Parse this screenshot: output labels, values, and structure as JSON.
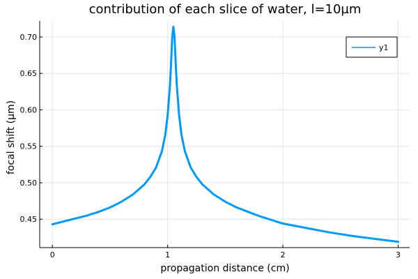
{
  "chart_data": {
    "type": "line",
    "title": "contribution of each slice of water, l=10µm",
    "xlabel": "propagation distance (cm)",
    "ylabel": "focal shift (µm)",
    "xlim": [
      -0.11,
      3.1
    ],
    "ylim": [
      0.411,
      0.722
    ],
    "xticks": [
      0,
      1,
      2,
      3
    ],
    "xtick_labels": [
      "0",
      "1",
      "2",
      "3"
    ],
    "yticks": [
      0.45,
      0.5,
      0.55,
      0.6,
      0.65,
      0.7
    ],
    "ytick_labels": [
      "0.45",
      "0.50",
      "0.55",
      "0.60",
      "0.65",
      "0.70"
    ],
    "grid": true,
    "legend": {
      "position": "top-right",
      "entries": [
        "y1"
      ]
    },
    "colors": {
      "series": "#009af9",
      "axis": "#000000",
      "grid": "#e6e6e6"
    },
    "series": [
      {
        "name": "y1",
        "x": [
          0.0,
          0.1,
          0.2,
          0.3,
          0.4,
          0.5,
          0.6,
          0.7,
          0.8,
          0.85,
          0.9,
          0.95,
          0.98,
          1.0,
          1.02,
          1.03,
          1.04,
          1.05,
          1.06,
          1.07,
          1.08,
          1.1,
          1.12,
          1.15,
          1.2,
          1.25,
          1.3,
          1.4,
          1.5,
          1.6,
          1.7,
          1.8,
          1.9,
          2.0,
          2.2,
          2.4,
          2.6,
          2.8,
          3.0
        ],
        "y": [
          0.443,
          0.447,
          0.451,
          0.455,
          0.46,
          0.466,
          0.474,
          0.484,
          0.498,
          0.508,
          0.521,
          0.543,
          0.566,
          0.592,
          0.633,
          0.664,
          0.7,
          0.714,
          0.7,
          0.664,
          0.633,
          0.592,
          0.566,
          0.543,
          0.521,
          0.508,
          0.498,
          0.484,
          0.474,
          0.466,
          0.46,
          0.454,
          0.449,
          0.444,
          0.438,
          0.432,
          0.427,
          0.423,
          0.419
        ]
      }
    ]
  }
}
